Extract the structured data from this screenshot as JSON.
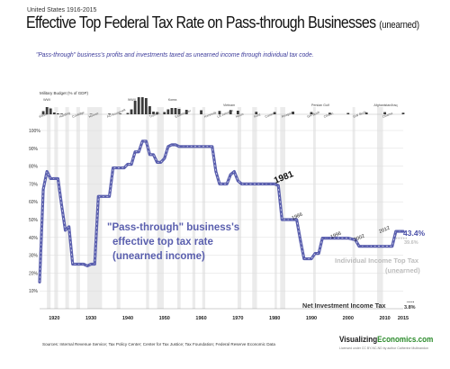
{
  "header": {
    "supertitle": "United States 1916-2015",
    "title": "Effective Top Federal Tax Rate on Pass-through Businesses",
    "title_paren": "(unearned)",
    "subtitle": "\"Pass-through\" business's profits and investments taxed as unearned income through individual tax code."
  },
  "military": {
    "label": "Military Budget (%% of GDP)",
    "wars": [
      "WWI",
      "WWII",
      "Korea",
      "Vietnam",
      "Persian Gulf",
      "Afghanistan/Iraq"
    ],
    "presidents": [
      "Wilson",
      "Harding",
      "Coolidge",
      "Hoover",
      "FD Roosevelt",
      "Truman",
      "Eisenhower",
      "Kennedy",
      "LB Johnson",
      "Nixon",
      "Ford",
      "Carter",
      "Reagan",
      "GH Bush",
      "Clinton",
      "GW Bush",
      "Obama"
    ],
    "spending": [
      {
        "year": 1917,
        "value": 7
      },
      {
        "year": 1918,
        "value": 16
      },
      {
        "year": 1919,
        "value": 13
      },
      {
        "year": 1920,
        "value": 4
      },
      {
        "year": 1921,
        "value": 2
      },
      {
        "year": 1922,
        "value": 1.5
      },
      {
        "year": 1930,
        "value": 1
      },
      {
        "year": 1935,
        "value": 1.5
      },
      {
        "year": 1938,
        "value": 1.5
      },
      {
        "year": 1940,
        "value": 3
      },
      {
        "year": 1941,
        "value": 11
      },
      {
        "year": 1942,
        "value": 30
      },
      {
        "year": 1943,
        "value": 38
      },
      {
        "year": 1944,
        "value": 38
      },
      {
        "year": 1945,
        "value": 36
      },
      {
        "year": 1946,
        "value": 18
      },
      {
        "year": 1947,
        "value": 6
      },
      {
        "year": 1948,
        "value": 5
      },
      {
        "year": 1950,
        "value": 5
      },
      {
        "year": 1951,
        "value": 11
      },
      {
        "year": 1952,
        "value": 14
      },
      {
        "year": 1953,
        "value": 14
      },
      {
        "year": 1954,
        "value": 12
      },
      {
        "year": 1956,
        "value": 10
      },
      {
        "year": 1960,
        "value": 9
      },
      {
        "year": 1965,
        "value": 7.5
      },
      {
        "year": 1968,
        "value": 9.5
      },
      {
        "year": 1970,
        "value": 8
      },
      {
        "year": 1975,
        "value": 5.5
      },
      {
        "year": 1980,
        "value": 5
      },
      {
        "year": 1985,
        "value": 6
      },
      {
        "year": 1990,
        "value": 5
      },
      {
        "year": 1995,
        "value": 3.5
      },
      {
        "year": 2000,
        "value": 3
      },
      {
        "year": 2005,
        "value": 4
      },
      {
        "year": 2010,
        "value": 4.8
      },
      {
        "year": 2015,
        "value": 3.5
      }
    ]
  },
  "annotations": {
    "main_label_line1": "\"Pass-through\" business's",
    "main_label_line2": "effective top tax rate",
    "main_label_line3": "(unearned income)",
    "y1981": "1981",
    "y1986": "1986",
    "y1996": "1996",
    "y2002": "2002",
    "y2012": "2012",
    "end_value": "43.4%",
    "end_value2": "39.6%",
    "individual_line1": "Individual Income Top Tax",
    "individual_line2": "(unearned)",
    "niit_label": "Net Investment Income Tax",
    "niit_value": "3.8%"
  },
  "footer": {
    "sources": "Sources: Internal Revenue Service; Tax Policy Center; Center for Tax Justice; Tax Foundation; Federal Reserve Economic Data",
    "brand_main": "Visualizing",
    "brand_domain": "Economics.com",
    "license": "Licensed under CC BY-NC-ND by author Catherine Mulbrandon"
  },
  "colors": {
    "pass_through": "#5a5fae",
    "individual": "#c4c4c4",
    "recession": "#ebebeb",
    "military": "#3a3a3a"
  },
  "chart_data": {
    "type": "line",
    "ylim": [
      0,
      100
    ],
    "xlim": [
      1916,
      2015
    ],
    "yticks": [
      0,
      10,
      20,
      30,
      40,
      50,
      60,
      70,
      80,
      90,
      100
    ],
    "ytick_labels": [
      "",
      "10%",
      "20%",
      "30%",
      "40%",
      "50%",
      "60%",
      "70%",
      "80%",
      "90%",
      "100%"
    ],
    "xticks": [
      1920,
      1930,
      1940,
      1950,
      1960,
      1970,
      1980,
      1990,
      2000,
      2010,
      2015
    ],
    "xtick_labels": [
      "1920",
      "1930",
      "1940",
      "1950",
      "1960",
      "1970",
      "1980",
      "1990",
      "2000",
      "2010",
      "2015"
    ],
    "recessions": [
      [
        1918,
        1919
      ],
      [
        1920,
        1921
      ],
      [
        1923,
        1924
      ],
      [
        1926,
        1927
      ],
      [
        1929,
        1933
      ],
      [
        1937,
        1938
      ],
      [
        1945,
        1945.8
      ],
      [
        1948,
        1949.8
      ],
      [
        1953.5,
        1954.4
      ],
      [
        1957.6,
        1958.4
      ],
      [
        1960.3,
        1961.1
      ],
      [
        1969.9,
        1970.9
      ],
      [
        1973.9,
        1975.2
      ],
      [
        1980,
        1980.6
      ],
      [
        1981.5,
        1982.9
      ],
      [
        1990.5,
        1991.2
      ],
      [
        2001.2,
        2001.9
      ],
      [
        2007.9,
        2009.5
      ]
    ],
    "series": [
      {
        "name": "\"Pass-through\" business's effective top tax rate (unearned income)",
        "values": [
          [
            1916,
            15
          ],
          [
            1917,
            67
          ],
          [
            1918,
            77
          ],
          [
            1919,
            73
          ],
          [
            1920,
            73
          ],
          [
            1921,
            73
          ],
          [
            1922,
            58
          ],
          [
            1923,
            44
          ],
          [
            1924,
            46
          ],
          [
            1925,
            25
          ],
          [
            1926,
            25
          ],
          [
            1927,
            25
          ],
          [
            1928,
            25
          ],
          [
            1929,
            24
          ],
          [
            1930,
            25
          ],
          [
            1931,
            25
          ],
          [
            1932,
            63
          ],
          [
            1933,
            63
          ],
          [
            1934,
            63
          ],
          [
            1935,
            63
          ],
          [
            1936,
            79
          ],
          [
            1937,
            79
          ],
          [
            1938,
            79
          ],
          [
            1939,
            79
          ],
          [
            1940,
            81.1
          ],
          [
            1941,
            81
          ],
          [
            1942,
            88
          ],
          [
            1943,
            88
          ],
          [
            1944,
            94
          ],
          [
            1945,
            94
          ],
          [
            1946,
            86.45
          ],
          [
            1947,
            86.45
          ],
          [
            1948,
            82.13
          ],
          [
            1949,
            82.13
          ],
          [
            1950,
            84.36
          ],
          [
            1951,
            91
          ],
          [
            1952,
            92
          ],
          [
            1953,
            92
          ],
          [
            1954,
            91
          ],
          [
            1955,
            91
          ],
          [
            1956,
            91
          ],
          [
            1957,
            91
          ],
          [
            1958,
            91
          ],
          [
            1959,
            91
          ],
          [
            1960,
            91
          ],
          [
            1961,
            91
          ],
          [
            1962,
            91
          ],
          [
            1963,
            91
          ],
          [
            1964,
            77
          ],
          [
            1965,
            70
          ],
          [
            1966,
            70
          ],
          [
            1967,
            70
          ],
          [
            1968,
            75.25
          ],
          [
            1969,
            77
          ],
          [
            1970,
            71.75
          ],
          [
            1971,
            70
          ],
          [
            1972,
            70
          ],
          [
            1973,
            70
          ],
          [
            1974,
            70
          ],
          [
            1975,
            70
          ],
          [
            1976,
            70
          ],
          [
            1977,
            70
          ],
          [
            1978,
            70
          ],
          [
            1979,
            70
          ],
          [
            1980,
            70
          ],
          [
            1981,
            69.13
          ],
          [
            1982,
            50
          ],
          [
            1983,
            50
          ],
          [
            1984,
            50
          ],
          [
            1985,
            50
          ],
          [
            1986,
            50
          ],
          [
            1987,
            38.5
          ],
          [
            1988,
            28
          ],
          [
            1989,
            28
          ],
          [
            1990,
            28
          ],
          [
            1991,
            31
          ],
          [
            1992,
            31
          ],
          [
            1993,
            39.6
          ],
          [
            1994,
            39.6
          ],
          [
            1995,
            39.6
          ],
          [
            1996,
            39.6
          ],
          [
            1997,
            39.6
          ],
          [
            1998,
            39.6
          ],
          [
            1999,
            39.6
          ],
          [
            2000,
            39.6
          ],
          [
            2001,
            39.1
          ],
          [
            2002,
            38.6
          ],
          [
            2003,
            35
          ],
          [
            2004,
            35
          ],
          [
            2005,
            35
          ],
          [
            2006,
            35
          ],
          [
            2007,
            35
          ],
          [
            2008,
            35
          ],
          [
            2009,
            35
          ],
          [
            2010,
            35
          ],
          [
            2011,
            35
          ],
          [
            2012,
            35
          ],
          [
            2013,
            43.4
          ],
          [
            2014,
            43.4
          ],
          [
            2015,
            43.4
          ]
        ]
      },
      {
        "name": "Individual Income Top Tax (unearned)",
        "values": [
          [
            2013,
            39.6
          ],
          [
            2015,
            39.6
          ]
        ]
      },
      {
        "name": "Net Investment Income Tax",
        "values": [
          [
            2013,
            3.8
          ],
          [
            2015,
            3.8
          ]
        ]
      }
    ]
  }
}
